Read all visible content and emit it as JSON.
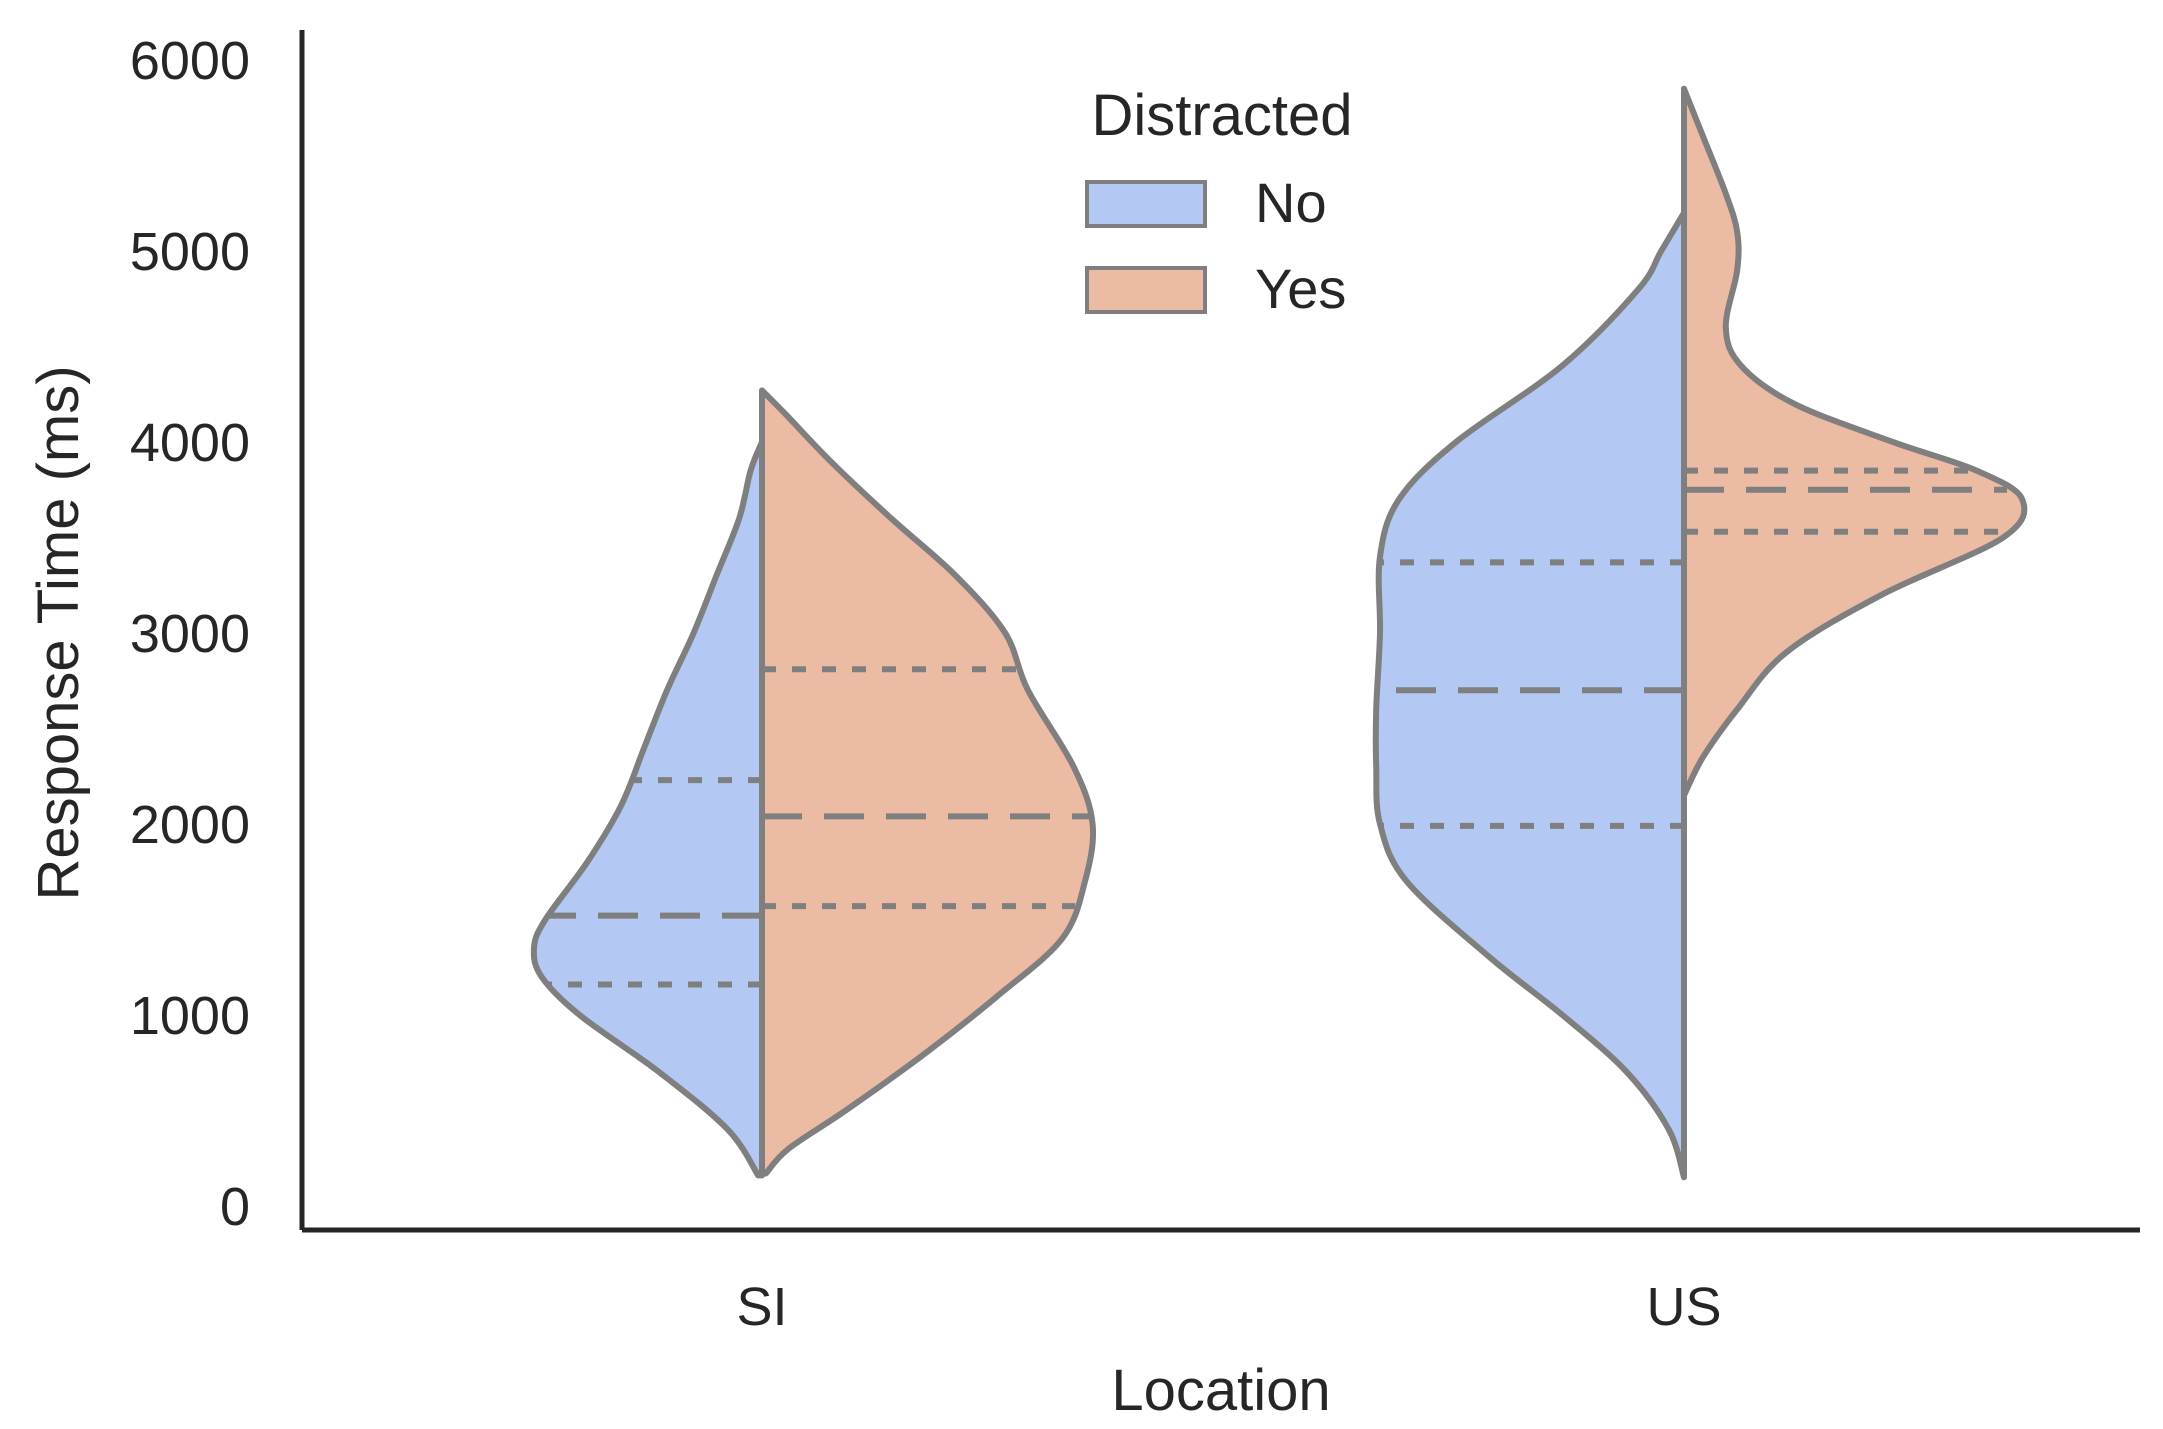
{
  "chart_data": {
    "type": "violin",
    "title": "",
    "xlabel": "Location",
    "ylabel": "Response Time (ms)",
    "ylim": [
      0,
      6000
    ],
    "yticks": [
      "0",
      "1000",
      "2000",
      "3000",
      "4000",
      "5000",
      "6000"
    ],
    "categories": [
      "SI",
      "US"
    ],
    "split": true,
    "grid": false,
    "legend": {
      "title": "Distracted",
      "placement": "top-center",
      "entries": [
        {
          "label": "No",
          "color": "#b3c8f2"
        },
        {
          "label": "Yes",
          "color": "#ecbba3"
        }
      ]
    },
    "series": [
      {
        "name": "No",
        "side": "left",
        "color": "#b3c8f2",
        "violins": [
          {
            "category": "SI",
            "min": 160,
            "max": 4000,
            "q1": 1160,
            "median": 1520,
            "q3": 2230,
            "density": [
              [
                160,
                0.01
              ],
              [
                400,
                0.09
              ],
              [
                700,
                0.27
              ],
              [
                1000,
                0.48
              ],
              [
                1200,
                0.58
              ],
              [
                1350,
                0.6
              ],
              [
                1500,
                0.57
              ],
              [
                1800,
                0.46
              ],
              [
                2100,
                0.37
              ],
              [
                2400,
                0.31
              ],
              [
                2700,
                0.25
              ],
              [
                3000,
                0.18
              ],
              [
                3300,
                0.12
              ],
              [
                3600,
                0.06
              ],
              [
                3850,
                0.03
              ],
              [
                4000,
                0
              ]
            ]
          },
          {
            "category": "US",
            "min": 150,
            "max": 5200,
            "q1": 1990,
            "median": 2700,
            "q3": 3370,
            "density": [
              [
                150,
                0
              ],
              [
                400,
                0.04
              ],
              [
                700,
                0.15
              ],
              [
                1000,
                0.32
              ],
              [
                1300,
                0.51
              ],
              [
                1700,
                0.73
              ],
              [
                2000,
                0.8
              ],
              [
                2300,
                0.81
              ],
              [
                2600,
                0.81
              ],
              [
                3000,
                0.8
              ],
              [
                3400,
                0.8
              ],
              [
                3700,
                0.75
              ],
              [
                4000,
                0.6
              ],
              [
                4400,
                0.32
              ],
              [
                4800,
                0.12
              ],
              [
                5000,
                0.06
              ],
              [
                5200,
                0
              ]
            ]
          }
        ]
      },
      {
        "name": "Yes",
        "side": "right",
        "color": "#ecbba3",
        "violins": [
          {
            "category": "SI",
            "min": 170,
            "max": 4270,
            "q1": 1570,
            "median": 2040,
            "q3": 2810,
            "density": [
              [
                170,
                0.01
              ],
              [
                300,
                0.07
              ],
              [
                500,
                0.22
              ],
              [
                800,
                0.43
              ],
              [
                1100,
                0.62
              ],
              [
                1400,
                0.79
              ],
              [
                1700,
                0.85
              ],
              [
                2000,
                0.87
              ],
              [
                2300,
                0.82
              ],
              [
                2700,
                0.7
              ],
              [
                3000,
                0.64
              ],
              [
                3300,
                0.51
              ],
              [
                3600,
                0.34
              ],
              [
                3900,
                0.18
              ],
              [
                4150,
                0.06
              ],
              [
                4270,
                0
              ]
            ]
          },
          {
            "category": "US",
            "min": 2150,
            "max": 5850,
            "q1": 3530,
            "median": 3750,
            "q3": 3850,
            "density": [
              [
                2150,
                0
              ],
              [
                2350,
                0.05
              ],
              [
                2600,
                0.14
              ],
              [
                2900,
                0.27
              ],
              [
                3200,
                0.52
              ],
              [
                3500,
                0.84
              ],
              [
                3700,
                0.89
              ],
              [
                3850,
                0.77
              ],
              [
                4000,
                0.55
              ],
              [
                4200,
                0.29
              ],
              [
                4400,
                0.15
              ],
              [
                4600,
                0.11
              ],
              [
                4900,
                0.14
              ],
              [
                5100,
                0.14
              ],
              [
                5300,
                0.11
              ],
              [
                5600,
                0.05
              ],
              [
                5850,
                0
              ]
            ]
          }
        ]
      }
    ]
  }
}
